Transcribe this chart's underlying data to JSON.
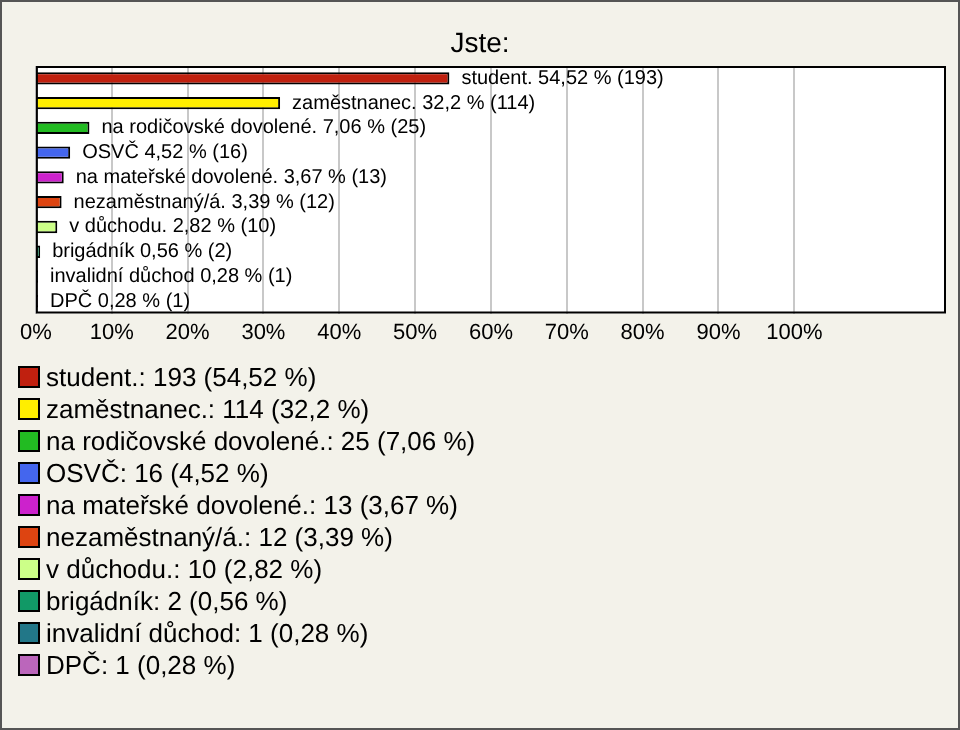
{
  "chart_data": {
    "type": "bar",
    "orientation": "horizontal",
    "title": "Jste:",
    "categories": [
      "student.",
      "zaměstnanec.",
      "na rodičovské dovolené.",
      "OSVČ",
      "na mateřské dovolené.",
      "nezaměstnaný/á.",
      "v důchodu.",
      "brigádník",
      "invalidní důchod",
      "DPČ"
    ],
    "values": [
      54.52,
      32.2,
      7.06,
      4.52,
      3.67,
      3.39,
      2.82,
      0.56,
      0.28,
      0.28
    ],
    "value_labels": [
      "54,52 % (193)",
      "32,2 % (114)",
      "7,06 % (25)",
      "4,52 % (16)",
      "3,67 % (13)",
      "3,39 % (12)",
      "2,82 % (10)",
      "0,56 % (2)",
      "0,28 % (1)",
      "0,28 % (1)"
    ],
    "colors": [
      "#c0200f",
      "#ffee00",
      "#22bb22",
      "#4466ee",
      "#cc22cc",
      "#dd4411",
      "#ccff88",
      "#119966",
      "#227788",
      "#bb66bb"
    ],
    "xlim": [
      0,
      120
    ],
    "xticks": [
      {
        "value": 0,
        "label": "0%"
      },
      {
        "value": 10,
        "label": "10%"
      },
      {
        "value": 20,
        "label": "20%"
      },
      {
        "value": 30,
        "label": "30%"
      },
      {
        "value": 40,
        "label": "40%"
      },
      {
        "value": 50,
        "label": "50%"
      },
      {
        "value": 60,
        "label": "60%"
      },
      {
        "value": 70,
        "label": "70%"
      },
      {
        "value": 80,
        "label": "80%"
      },
      {
        "value": 90,
        "label": "90%"
      },
      {
        "value": 100,
        "label": "100%"
      }
    ],
    "grid": "x",
    "annotations": [
      "student.: 193 (54,52 %)",
      "zaměstnanec.: 114 (32,2 %)",
      "na rodičovské dovolené.: 25 (7,06 %)",
      "OSVČ: 16 (4,52 %)",
      "na mateřské dovolené.: 13 (3,67 %)",
      "nezaměstnaný/á.: 12 (3,39 %)",
      "v důchodu.: 10 (2,82 %)",
      "brigádník: 2 (0,56 %)",
      "invalidní důchod: 1 (0,28 %)",
      "DPČ: 1 (0,28 %)"
    ]
  }
}
